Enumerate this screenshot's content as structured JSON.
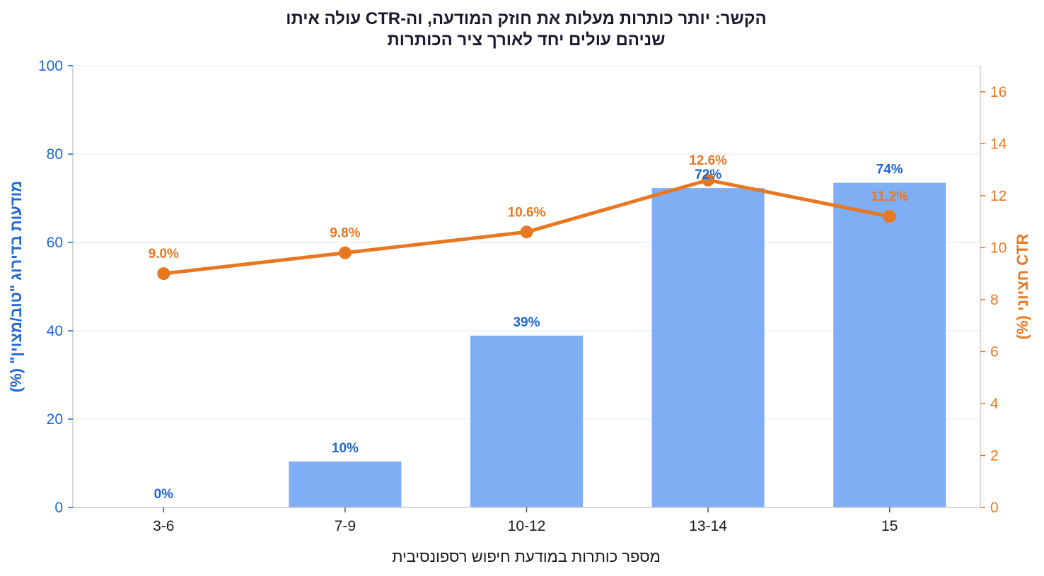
{
  "chart_data": {
    "type": "bar",
    "title_lines": [
      "הקשר: יותר כותרות מעלות את חוזק המודעה, וה-CTR עולה איתו",
      "שניהם עולים יחד לאורך ציר הכותרות"
    ],
    "xlabel": "מספר כותרות במודעת חיפוש רספונסיבית",
    "ylabel_left": "מודעות בדירוג \"טוב/מצוין\" (%)",
    "ylabel_right": "CTR חציוני (%)",
    "categories": [
      "3-6",
      "7-9",
      "10-12",
      "13-14",
      "15"
    ],
    "ylim_left": [
      0,
      100
    ],
    "ylim_right": [
      0,
      17
    ],
    "yticks_left": [
      0,
      20,
      40,
      60,
      80,
      100
    ],
    "yticks_right": [
      0,
      2,
      4,
      6,
      8,
      10,
      12,
      14,
      16
    ],
    "grid": "horizontal, light",
    "series": [
      {
        "type": "bar",
        "axis": "left",
        "values": [
          0,
          10.4,
          38.9,
          72.3,
          73.5
        ],
        "labels": [
          "0%",
          "10%",
          "39%",
          "72%",
          "74%"
        ],
        "color": "#7FAEF5",
        "label_color": "#1F66D1"
      },
      {
        "type": "line",
        "axis": "right",
        "values": [
          9.0,
          9.8,
          10.6,
          12.6,
          11.2
        ],
        "labels": [
          "9.0%",
          "9.8%",
          "10.6%",
          "12.6%",
          "11.2%"
        ],
        "color": "#E87722"
      }
    ],
    "colors": {
      "left_axis": "#1F66D1",
      "right_axis": "#E87722",
      "grid": "#EEF1F5",
      "axis_line": "#CCCCCC"
    }
  }
}
